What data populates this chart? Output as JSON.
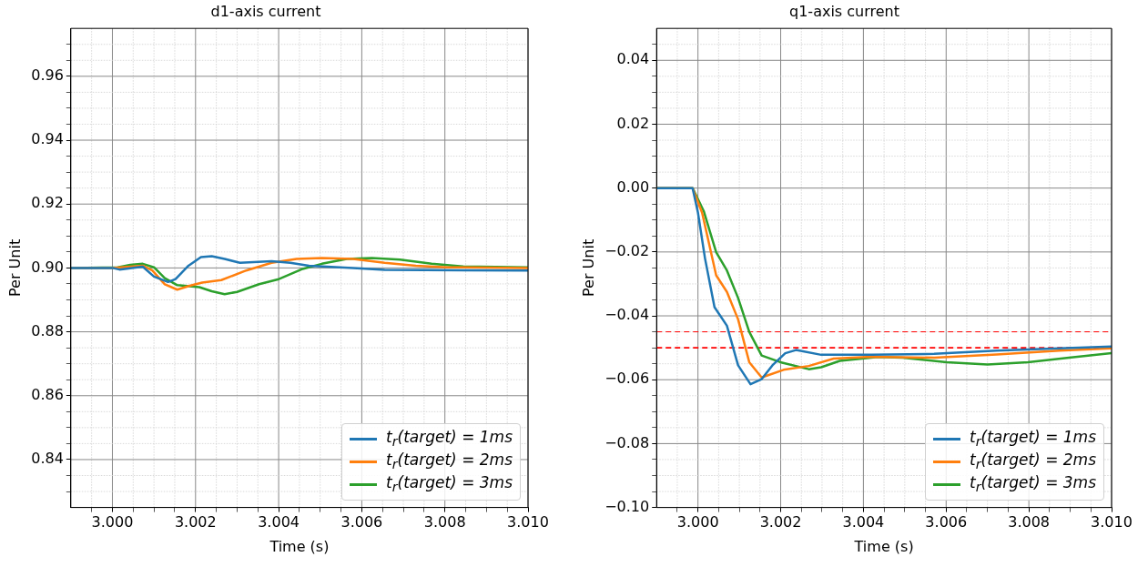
{
  "chart_data": [
    {
      "type": "line",
      "title": "d1-axis current",
      "xlabel": "Time (s)",
      "ylabel": "Per Unit",
      "grid": true,
      "legend": "bottom right",
      "xlim": [
        2.999,
        3.01
      ],
      "xticks": [
        {
          "value": 2.9995,
          "label": null
        },
        {
          "value": 3,
          "label": "3.000"
        },
        {
          "value": 3.0005,
          "label": null
        },
        {
          "value": 3.001,
          "label": null
        },
        {
          "value": 3.0015,
          "label": null
        },
        {
          "value": 3.002,
          "label": "3.002"
        },
        {
          "value": 3.0025,
          "label": null
        },
        {
          "value": 3.003,
          "label": null
        },
        {
          "value": 3.0035,
          "label": null
        },
        {
          "value": 3.004,
          "label": "3.004"
        },
        {
          "value": 3.0045,
          "label": null
        },
        {
          "value": 3.005,
          "label": null
        },
        {
          "value": 3.0055,
          "label": null
        },
        {
          "value": 3.006,
          "label": "3.006"
        },
        {
          "value": 3.0065,
          "label": null
        },
        {
          "value": 3.007,
          "label": null
        },
        {
          "value": 3.0075,
          "label": null
        },
        {
          "value": 3.008,
          "label": "3.008"
        },
        {
          "value": 3.0085,
          "label": null
        },
        {
          "value": 3.009,
          "label": null
        },
        {
          "value": 3.0095,
          "label": null
        },
        {
          "value": 3.01,
          "label": "3.010"
        }
      ],
      "ylim": [
        0.825,
        0.975
      ],
      "yticks": [
        {
          "value": 0.83,
          "label": null
        },
        {
          "value": 0.835,
          "label": null
        },
        0.84,
        {
          "value": 0.845,
          "label": null
        },
        {
          "value": 0.85,
          "label": null
        },
        {
          "value": 0.855,
          "label": null
        },
        0.86,
        {
          "value": 0.865,
          "label": null
        },
        {
          "value": 0.87,
          "label": null
        },
        {
          "value": 0.875,
          "label": null
        },
        0.88,
        {
          "value": 0.885,
          "label": null
        },
        {
          "value": 0.89,
          "label": null
        },
        {
          "value": 0.895,
          "label": null
        },
        {
          "value": 0.9,
          "label": "0.90"
        },
        {
          "value": 0.905,
          "label": null
        },
        {
          "value": 0.91,
          "label": null
        },
        {
          "value": 0.915,
          "label": null
        },
        0.92,
        {
          "value": 0.925,
          "label": null
        },
        {
          "value": 0.93,
          "label": null
        },
        {
          "value": 0.935,
          "label": null
        },
        0.94,
        {
          "value": 0.945,
          "label": null
        },
        {
          "value": 0.95,
          "label": null
        },
        {
          "value": 0.955,
          "label": null
        },
        0.96,
        {
          "value": 0.965,
          "label": null
        },
        {
          "value": 0.97,
          "label": null
        }
      ],
      "series": [
        {
          "name": "t$_{r}$(target) = 1ms",
          "color": "#1f77b4",
          "x": [
            2.999,
            3.0,
            3.00017,
            3.00073,
            3.001,
            3.00134,
            3.00152,
            3.00183,
            3.00213,
            3.00239,
            3.0027,
            3.00307,
            3.00383,
            3.00428,
            3.00473,
            3.00579,
            3.00655,
            3.01
          ],
          "values": [
            0.9,
            0.9,
            0.8995,
            0.9004,
            0.8973,
            0.8956,
            0.8965,
            0.9007,
            0.9034,
            0.9037,
            0.9028,
            0.9016,
            0.9021,
            0.9016,
            0.9007,
            0.9,
            0.8994,
            0.8992
          ]
        },
        {
          "name": "t$_{r}$(target) = 2ms",
          "color": "#ff7f0e",
          "x": [
            2.999,
            3.0,
            3.00073,
            3.00096,
            3.00126,
            3.00156,
            3.00186,
            3.00216,
            3.00262,
            3.00322,
            3.00383,
            3.00443,
            3.00504,
            3.00579,
            3.00655,
            3.0073,
            3.00806,
            3.01
          ],
          "values": [
            0.9,
            0.9,
            0.9007,
            0.8992,
            0.8949,
            0.8932,
            0.8944,
            0.8954,
            0.8962,
            0.8992,
            0.9016,
            0.9028,
            0.9031,
            0.9028,
            0.9016,
            0.9007,
            0.9002,
            0.9
          ]
        },
        {
          "name": "t$_{r}$(target) = 3ms",
          "color": "#2ca02c",
          "x": [
            2.999,
            3.00013,
            3.00043,
            3.00073,
            3.001,
            3.00126,
            3.00156,
            3.00209,
            3.00239,
            3.0027,
            3.003,
            3.00353,
            3.00398,
            3.00458,
            3.00504,
            3.00564,
            3.00624,
            3.00692,
            3.00768,
            3.00843,
            3.01
          ],
          "values": [
            0.9,
            0.9002,
            0.901,
            0.9013,
            0.9002,
            0.8968,
            0.8946,
            0.894,
            0.8927,
            0.8918,
            0.8925,
            0.8949,
            0.8964,
            0.8997,
            0.9013,
            0.9028,
            0.9031,
            0.9026,
            0.9013,
            0.9005,
            0.9002
          ]
        }
      ]
    },
    {
      "type": "line",
      "title": "q1-axis current",
      "xlabel": "Time (s)",
      "ylabel": "Per Unit",
      "grid": true,
      "legend": "bottom right",
      "xlim": [
        2.999,
        3.01
      ],
      "xticks": [
        {
          "value": 2.9995,
          "label": null
        },
        {
          "value": 3,
          "label": "3.000"
        },
        {
          "value": 3.0005,
          "label": null
        },
        {
          "value": 3.001,
          "label": null
        },
        {
          "value": 3.0015,
          "label": null
        },
        {
          "value": 3.002,
          "label": "3.002"
        },
        {
          "value": 3.0025,
          "label": null
        },
        {
          "value": 3.003,
          "label": null
        },
        {
          "value": 3.0035,
          "label": null
        },
        {
          "value": 3.004,
          "label": "3.004"
        },
        {
          "value": 3.0045,
          "label": null
        },
        {
          "value": 3.005,
          "label": null
        },
        {
          "value": 3.0055,
          "label": null
        },
        {
          "value": 3.006,
          "label": "3.006"
        },
        {
          "value": 3.0065,
          "label": null
        },
        {
          "value": 3.007,
          "label": null
        },
        {
          "value": 3.0075,
          "label": null
        },
        {
          "value": 3.008,
          "label": "3.008"
        },
        {
          "value": 3.0085,
          "label": null
        },
        {
          "value": 3.009,
          "label": null
        },
        {
          "value": 3.0095,
          "label": null
        },
        {
          "value": 3.01,
          "label": "3.010"
        }
      ],
      "ylim": [
        -0.1,
        0.05
      ],
      "yticks": [
        {
          "value": -0.1,
          "label": "−0.10"
        },
        {
          "value": -0.095,
          "label": null
        },
        {
          "value": -0.09,
          "label": null
        },
        {
          "value": -0.085,
          "label": null
        },
        {
          "value": -0.08,
          "label": "−0.08"
        },
        {
          "value": -0.075,
          "label": null
        },
        {
          "value": -0.07,
          "label": null
        },
        {
          "value": -0.065,
          "label": null
        },
        {
          "value": -0.06,
          "label": "−0.06"
        },
        {
          "value": -0.055,
          "label": null
        },
        {
          "value": -0.05,
          "label": null
        },
        {
          "value": -0.045,
          "label": null
        },
        {
          "value": -0.04,
          "label": "−0.04"
        },
        {
          "value": -0.035,
          "label": null
        },
        {
          "value": -0.03,
          "label": null
        },
        {
          "value": -0.025,
          "label": null
        },
        {
          "value": -0.02,
          "label": "−0.02"
        },
        {
          "value": -0.015,
          "label": null
        },
        {
          "value": -0.01,
          "label": null
        },
        {
          "value": -0.005,
          "label": null
        },
        {
          "value": 0,
          "label": "0.00"
        },
        {
          "value": 0.005,
          "label": null
        },
        {
          "value": 0.01,
          "label": null
        },
        {
          "value": 0.015,
          "label": null
        },
        0.02,
        {
          "value": 0.025,
          "label": null
        },
        {
          "value": 0.03,
          "label": null
        },
        {
          "value": 0.035,
          "label": null
        },
        0.04,
        {
          "value": 0.045,
          "label": null
        }
      ],
      "ref_lines": [
        {
          "axis": "y",
          "value": -0.045,
          "color": "#ff0000",
          "line_style": "dashed"
        },
        {
          "axis": "y",
          "value": -0.05,
          "color": "#ff0000",
          "line_style": "dashed"
        }
      ],
      "series": [
        {
          "name": "t$_{r}$(target) = 1ms",
          "color": "#1f77b4",
          "x": [
            2.999,
            2.99987,
            3.0,
            3.00017,
            3.0004,
            3.0007,
            3.00097,
            3.00127,
            3.00154,
            3.0018,
            3.00211,
            3.00237,
            3.00298,
            3.00419,
            3.00571,
            3.00722,
            3.00874,
            3.01
          ],
          "values": [
            0,
            0,
            -0.0077,
            -0.022,
            -0.0373,
            -0.0431,
            -0.0555,
            -0.0614,
            -0.0598,
            -0.0555,
            -0.0517,
            -0.0507,
            -0.0522,
            -0.0522,
            -0.0519,
            -0.0509,
            -0.0502,
            -0.0496
          ]
        },
        {
          "name": "t$_{r}$(target) = 2ms",
          "color": "#ff7f0e",
          "x": [
            2.999,
            2.99987,
            3.0001,
            3.00044,
            3.0007,
            3.00097,
            3.00124,
            3.00154,
            3.00207,
            3.00268,
            3.00328,
            3.00419,
            3.00571,
            3.00722,
            3.00874,
            3.01
          ],
          "values": [
            0,
            0,
            -0.0077,
            -0.0273,
            -0.0325,
            -0.0411,
            -0.0545,
            -0.0593,
            -0.0569,
            -0.0557,
            -0.0534,
            -0.0528,
            -0.0531,
            -0.0521,
            -0.0509,
            -0.0502
          ]
        },
        {
          "name": "t$_{r}$(target) = 3ms",
          "color": "#2ca02c",
          "x": [
            2.999,
            2.99987,
            3.00014,
            3.00044,
            3.0007,
            3.00097,
            3.00124,
            3.00154,
            3.00199,
            3.00268,
            3.00298,
            3.00343,
            3.00434,
            3.00495,
            3.00601,
            3.007,
            3.00798,
            3.00897,
            3.01
          ],
          "values": [
            0,
            0,
            -0.0072,
            -0.0201,
            -0.0258,
            -0.0344,
            -0.045,
            -0.0524,
            -0.0545,
            -0.0567,
            -0.0561,
            -0.0541,
            -0.0529,
            -0.0531,
            -0.0545,
            -0.0552,
            -0.0545,
            -0.0531,
            -0.0517
          ]
        }
      ]
    }
  ]
}
